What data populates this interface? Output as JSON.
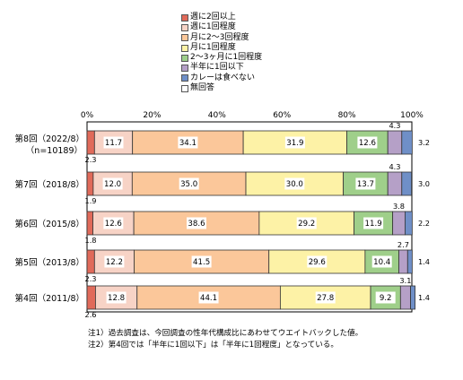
{
  "chart_data": {
    "type": "bar",
    "orientation": "horizontal",
    "stacked": true,
    "percent": true,
    "xlim": [
      0,
      100
    ],
    "x_ticks": [
      "0%",
      "20%",
      "40%",
      "60%",
      "80%",
      "100%"
    ],
    "categories": [
      [
        "第8回（2022/8）",
        "（n=10189）"
      ],
      [
        "第7回（2018/8）"
      ],
      [
        "第6回（2015/8）"
      ],
      [
        "第5回（2013/8）"
      ],
      [
        "第4回（2011/8）"
      ]
    ],
    "series": [
      {
        "name": "週に2回以上",
        "color": "#e06a5a",
        "values": [
          2.3,
          1.9,
          1.8,
          2.3,
          2.6
        ]
      },
      {
        "name": "週に1回程度",
        "color": "#f7d3c6",
        "values": [
          11.7,
          12.0,
          12.6,
          12.2,
          12.8
        ]
      },
      {
        "name": "月に2～3回程度",
        "color": "#fbc79a",
        "values": [
          34.1,
          35.0,
          38.6,
          41.5,
          44.1
        ]
      },
      {
        "name": "月に1回程度",
        "color": "#fdf2a6",
        "values": [
          31.9,
          30.0,
          29.2,
          29.6,
          27.8
        ]
      },
      {
        "name": "2～3ヶ月に1回程度",
        "color": "#9fcf8a",
        "values": [
          12.6,
          13.7,
          11.9,
          10.4,
          9.2
        ]
      },
      {
        "name": "半年に1回以下",
        "color": "#b5a0c7",
        "values": [
          4.3,
          4.3,
          3.8,
          2.7,
          3.1
        ]
      },
      {
        "name": "カレーは食べない",
        "color": "#6f8fc7",
        "values": [
          3.2,
          3.0,
          2.2,
          1.4,
          1.4
        ]
      },
      {
        "name": "無回答",
        "color": "#ffffff",
        "values": [
          0,
          0,
          0,
          0,
          0
        ]
      }
    ],
    "labels": {
      "s0": [
        "2.3",
        "1.9",
        "1.8",
        "2.3",
        "2.6"
      ],
      "s1": [
        "11.7",
        "12.0",
        "12.6",
        "12.2",
        "12.8"
      ],
      "s2": [
        "34.1",
        "35.0",
        "38.6",
        "41.5",
        "44.1"
      ],
      "s3": [
        "31.9",
        "30.0",
        "29.2",
        "29.6",
        "27.8"
      ],
      "s4": [
        "12.6",
        "13.7",
        "11.9",
        "10.4",
        "9.2"
      ],
      "s5": [
        "4.3",
        "4.3",
        "3.8",
        "2.7",
        "3.1"
      ],
      "s6": [
        "3.2",
        "3.0",
        "2.2",
        "1.4",
        "1.4"
      ]
    }
  },
  "notes": [
    "注1）過去調査は、今回調査の性年代構成比にあわせてウエイトバックした値。",
    "注2）第4回では「半年に1回以下」は「半年に1回程度」となっている。"
  ]
}
